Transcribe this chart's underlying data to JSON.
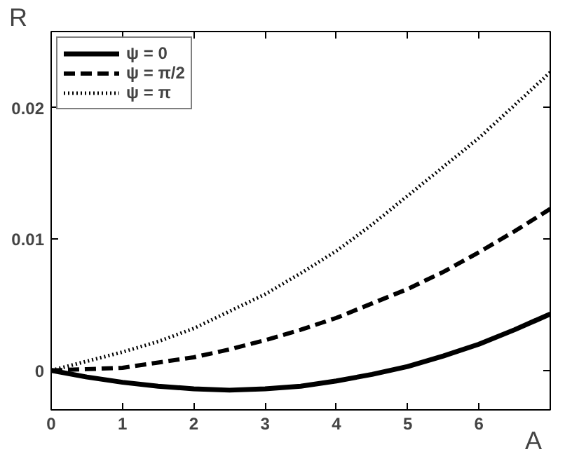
{
  "chart_data": {
    "type": "line",
    "xlabel": "A",
    "ylabel": "R",
    "x": [
      0,
      0.5,
      1,
      1.5,
      2,
      2.5,
      3,
      3.5,
      4,
      4.5,
      5,
      5.5,
      6,
      6.5,
      7
    ],
    "series": [
      {
        "name": "ψ = 0",
        "color": "#000000",
        "line_style": "solid",
        "values": [
          0,
          -0.0005,
          -0.0009,
          -0.0012,
          -0.0014,
          -0.0015,
          -0.0014,
          -0.0012,
          -0.0008,
          -0.0003,
          0.0003,
          0.0011,
          0.002,
          0.0031,
          0.0043
        ]
      },
      {
        "name": "ψ = π/2",
        "color": "#000000",
        "line_style": "dashed",
        "values": [
          0,
          0.0001,
          0.0002,
          0.0006,
          0.001,
          0.0016,
          0.0023,
          0.0031,
          0.004,
          0.0051,
          0.0062,
          0.0075,
          0.009,
          0.0106,
          0.0123
        ]
      },
      {
        "name": "ψ = π",
        "color": "#000000",
        "line_style": "dotted",
        "values": [
          0,
          0.0007,
          0.0014,
          0.0022,
          0.0032,
          0.0045,
          0.0058,
          0.0074,
          0.0091,
          0.0111,
          0.0133,
          0.0155,
          0.0177,
          0.0202,
          0.0227
        ]
      }
    ],
    "xlim": [
      0,
      7
    ],
    "ylim": [
      -0.003,
      0.0258
    ],
    "xticks": [
      0,
      1,
      2,
      3,
      4,
      5,
      6
    ],
    "yticks": [
      0,
      0.01,
      0.02
    ],
    "grid": false,
    "legend": "top left"
  }
}
